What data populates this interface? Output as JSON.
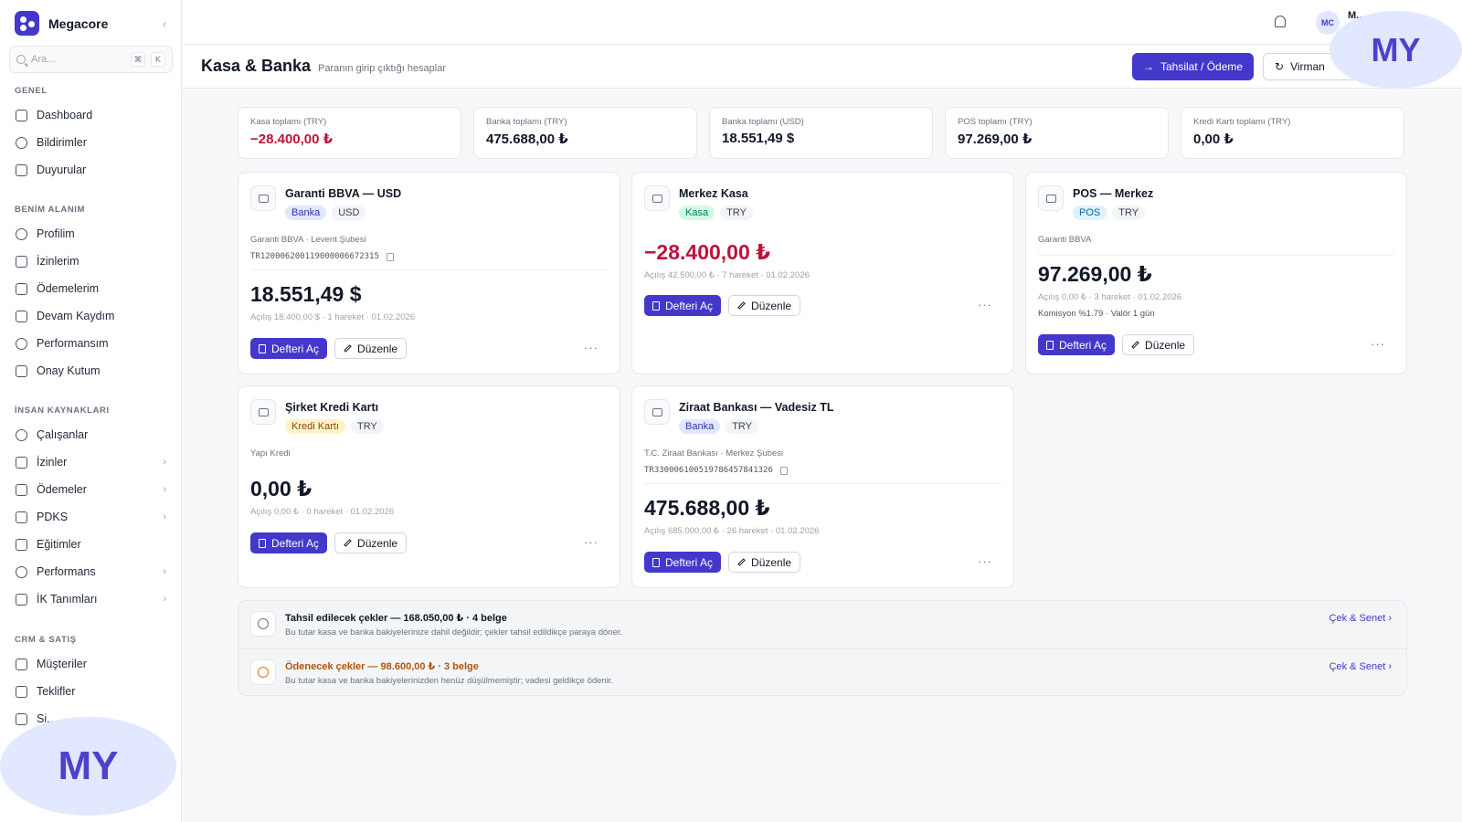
{
  "brand": {
    "name": "Megacore",
    "collapse": "‹"
  },
  "search": {
    "placeholder": "Ara...",
    "kbd1": "⌘",
    "kbd2": "K"
  },
  "sidebar": {
    "sections": [
      {
        "title": "GENEL",
        "items": [
          {
            "label": "Dashboard",
            "icon": "home-icon"
          },
          {
            "label": "Bildirimler",
            "icon": "bell-icon"
          },
          {
            "label": "Duyurular",
            "icon": "megaphone-icon"
          }
        ]
      },
      {
        "title": "BENİM ALANIM",
        "items": [
          {
            "label": "Profilim",
            "icon": "user-circle-icon"
          },
          {
            "label": "İzinlerim",
            "icon": "umbrella-icon"
          },
          {
            "label": "Ödemelerim",
            "icon": "wallet-icon"
          },
          {
            "label": "Devam Kaydım",
            "icon": "calendar-icon"
          },
          {
            "label": "Performansım",
            "icon": "target-icon"
          },
          {
            "label": "Onay Kutum",
            "icon": "inbox-icon"
          }
        ]
      },
      {
        "title": "İNSAN KAYNAKLARI",
        "items": [
          {
            "label": "Çalışanlar",
            "icon": "users-icon"
          },
          {
            "label": "İzinler",
            "icon": "umbrella-icon",
            "chevron": "›"
          },
          {
            "label": "Ödemeler",
            "icon": "wallet-icon",
            "chevron": "›"
          },
          {
            "label": "PDKS",
            "icon": "calendar-icon",
            "chevron": "›"
          },
          {
            "label": "Eğitimler",
            "icon": "graduation-cap-icon"
          },
          {
            "label": "Performans",
            "icon": "target-icon",
            "chevron": "›"
          },
          {
            "label": "İK Tanımları",
            "icon": "folder-icon",
            "chevron": "›"
          }
        ]
      },
      {
        "title": "CRM & SATIŞ",
        "items": [
          {
            "label": "Müşteriler",
            "icon": "building-icon"
          },
          {
            "label": "Teklifler",
            "icon": "document-icon"
          },
          {
            "label": "Si...",
            "icon": "document-icon"
          }
        ]
      }
    ]
  },
  "header": {
    "avatar": "MC",
    "user_name": "M..."
  },
  "page": {
    "title": "Kasa & Banka",
    "subtitle": "Paranın girip çıktığı hesaplar",
    "primary_action": "Tahsilat / Ödeme",
    "secondary_action": "Virman"
  },
  "summary": [
    {
      "label": "Kasa toplamı (TRY)",
      "value": "−28.400,00 ₺",
      "negative": true
    },
    {
      "label": "Banka toplamı (TRY)",
      "value": "475.688,00 ₺"
    },
    {
      "label": "Banka toplamı (USD)",
      "value": "18.551,49 $"
    },
    {
      "label": "POS toplamı (TRY)",
      "value": "97.269,00 ₺"
    },
    {
      "label": "Kredi Kartı toplamı (TRY)",
      "value": "0,00 ₺"
    }
  ],
  "accounts": [
    {
      "title": "Garanti BBVA — USD",
      "type": "Banka",
      "currency": "USD",
      "meta": "Garanti BBVA · Levent Şubesi",
      "iban": "TR120006200119000006672315",
      "balance": "18.551,49 $",
      "sub": "Açılış 18.400,00 $ · 1 hareket · 01.02.2026"
    },
    {
      "title": "Merkez Kasa",
      "type": "Kasa",
      "currency": "TRY",
      "balance": "−28.400,00 ₺",
      "sub": "Açılış 42.500,00 ₺ · 7 hareket · 01.02.2026"
    },
    {
      "title": "POS — Merkez",
      "type": "POS",
      "currency": "TRY",
      "meta": "Garanti BBVA",
      "balance": "97.269,00 ₺",
      "sub": "Açılış 0,00 ₺ · 3 hareket · 01.02.2026",
      "extra": "Komisyon %1.79 · Valör 1 gün"
    },
    {
      "title": "Şirket Kredi Kartı",
      "type": "Kredi Kartı",
      "currency": "TRY",
      "meta": "Yapı Kredi",
      "balance": "0,00 ₺",
      "sub": "Açılış 0,00 ₺ · 0 hareket · 01.02.2026"
    },
    {
      "title": "Ziraat Bankası — Vadesiz TL",
      "type": "Banka",
      "currency": "TRY",
      "meta": "T.C. Ziraat Bankası · Merkez Şubesi",
      "iban": "TR330006100519786457841326",
      "balance": "475.688,00 ₺",
      "sub": "Açılış 685.000,00 ₺ · 26 hareket · 01.02.2026"
    }
  ],
  "account_actions": {
    "open_ledger": "Defteri Aç",
    "edit": "Düzenle",
    "more": "···"
  },
  "cheques": [
    {
      "title": "Tahsil edilecek çekler — 168.050,00 ₺ · 4 belge",
      "desc": "Bu tutar kasa ve banka bakiyelerinize dahil değildir; çekler tahsil edildikçe paraya döner.",
      "link": "Çek & Senet ›"
    },
    {
      "title": "Ödenecek çekler — 98.600,00 ₺ · 3 belge",
      "desc": "Bu tutar kasa ve banka bakiyelerinizden henüz düşülmemiştir; vadesi geldikçe ödenir.",
      "link": "Çek & Senet ›"
    }
  ],
  "watermark": "MY"
}
